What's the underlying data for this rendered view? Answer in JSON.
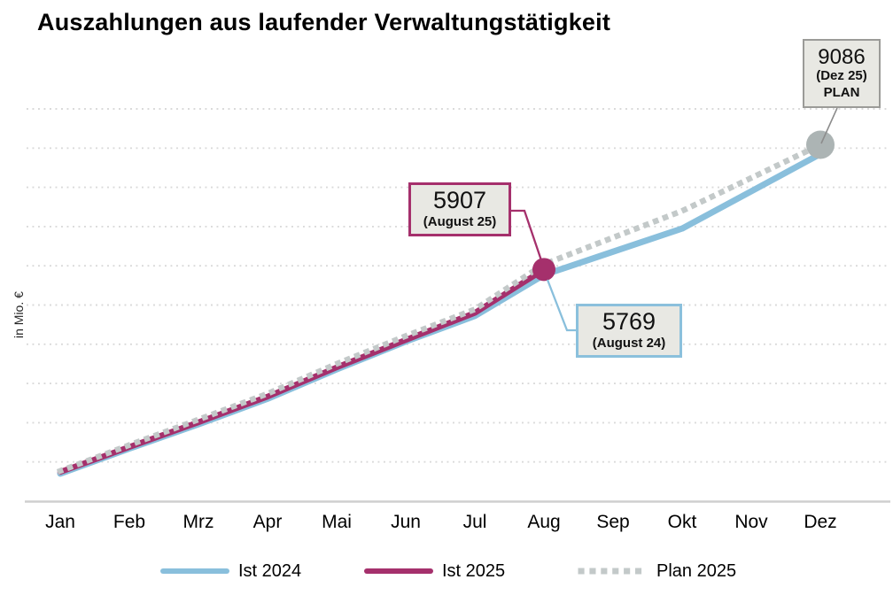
{
  "chart_data": {
    "type": "line",
    "title": "Auszahlungen aus laufender Verwaltungstätigkeit",
    "ylabel": "in Mio. €",
    "xlabel": "",
    "categories": [
      "Jan",
      "Feb",
      "Mrz",
      "Apr",
      "Mai",
      "Jun",
      "Jul",
      "Aug",
      "Sep",
      "Okt",
      "Nov",
      "Dez"
    ],
    "series": [
      {
        "name": "Ist 2024",
        "style": "solid",
        "color": "#89bfdc",
        "values": [
          700,
          1340,
          1960,
          2610,
          3360,
          4070,
          4720,
          5769,
          6360,
          6950,
          7900,
          8850
        ]
      },
      {
        "name": "Ist 2025",
        "style": "solid",
        "color": "#a5306c",
        "values": [
          745,
          1380,
          2010,
          2665,
          3410,
          4110,
          4800,
          5907
        ]
      },
      {
        "name": "Plan 2025",
        "style": "dotted",
        "color": "#c3c9c9",
        "values": [
          770,
          1430,
          2080,
          2740,
          3500,
          4210,
          4890,
          6040,
          6720,
          7400,
          8240,
          9086
        ]
      }
    ],
    "ylim": [
      0,
      10500
    ],
    "gridline_interval": 1000,
    "grid": "horizontal-dotted",
    "legend_position": "bottom",
    "markers": [
      {
        "month": "Aug",
        "series_index": 1,
        "color": "#a5306c"
      },
      {
        "month": "Dez",
        "series_index": 2,
        "color": "#acb4b4"
      }
    ],
    "annotations": [
      {
        "value": "9086",
        "label": "(Dez 25)",
        "sublabel": "PLAN",
        "series": "Plan 2025",
        "category": "Dez"
      },
      {
        "value": "5907",
        "label": "(August 25)",
        "series": "Ist 2025",
        "category": "Aug"
      },
      {
        "value": "5769",
        "label": "(August 24)",
        "series": "Ist 2024",
        "category": "Aug"
      }
    ],
    "colors": {
      "background": "#ffffff",
      "gridline": "#d9d9d9",
      "axis_line": "#cfcfcf",
      "annotation_fill": "#e8e8e3",
      "annotation_border_gray": "#9b9b98",
      "leader_gray": "#8c8c8c"
    }
  }
}
